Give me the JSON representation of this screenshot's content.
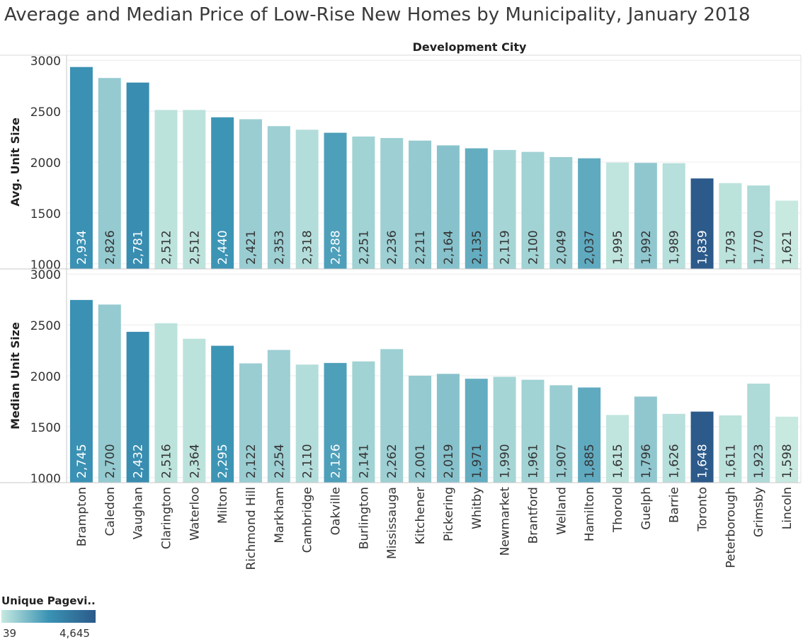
{
  "chart_data": {
    "type": "bar",
    "title": "Average and Median Price of Low-Rise New Homes by Municipality, January 2018",
    "column_header": "Development City",
    "categories": [
      "Brampton",
      "Caledon",
      "Vaughan",
      "Clarington",
      "Waterloo",
      "Milton",
      "Richmond Hill",
      "Markham",
      "Cambridge",
      "Oakville",
      "Burlington",
      "Mississauga",
      "Kitchener",
      "Pickering",
      "Whitby",
      "Newmarket",
      "Brantford",
      "Welland",
      "Hamilton",
      "Thorold",
      "Guelph",
      "Barrie",
      "Toronto",
      "Peterborough",
      "Grimsby",
      "Lincoln"
    ],
    "color_values": [
      3300,
      1200,
      3400,
      300,
      300,
      3200,
      1100,
      1000,
      500,
      2800,
      900,
      1000,
      1200,
      1500,
      2300,
      800,
      900,
      1100,
      2400,
      200,
      1300,
      400,
      4645,
      300,
      600,
      39
    ],
    "series": [
      {
        "name": "Avg. Unit Size",
        "ylabel": "Avg. Unit Size",
        "values": [
          2934,
          2826,
          2781,
          2512,
          2512,
          2440,
          2421,
          2353,
          2318,
          2288,
          2251,
          2236,
          2211,
          2164,
          2135,
          2119,
          2100,
          2049,
          2037,
          1995,
          1992,
          1989,
          1839,
          1793,
          1770,
          1621
        ],
        "labels": [
          "2,934",
          "2,826",
          "2,781",
          "2,512",
          "2,512",
          "2,440",
          "2,421",
          "2,353",
          "2,318",
          "2,288",
          "2,251",
          "2,236",
          "2,211",
          "2,164",
          "2,135",
          "2,119",
          "2,100",
          "2,049",
          "2,037",
          "1,995",
          "1,992",
          "1,989",
          "1,839",
          "1,793",
          "1,770",
          "1,621"
        ],
        "ylim": [
          950,
          3050
        ],
        "ticks": [
          3000,
          2500,
          2000,
          1500,
          1000
        ]
      },
      {
        "name": "Median Unit Size",
        "ylabel": "Median Unit Size",
        "values": [
          2745,
          2700,
          2432,
          2516,
          2364,
          2295,
          2122,
          2254,
          2110,
          2126,
          2141,
          2262,
          2001,
          2019,
          1971,
          1990,
          1961,
          1907,
          1885,
          1615,
          1796,
          1626,
          1648,
          1611,
          1923,
          1598
        ],
        "labels": [
          "2,745",
          "2,700",
          "2,432",
          "2,516",
          "2,364",
          "2,295",
          "2,122",
          "2,254",
          "2,110",
          "2,126",
          "2,141",
          "2,262",
          "2,001",
          "2,019",
          "1,971",
          "1,990",
          "1,961",
          "1,907",
          "1,885",
          "1,615",
          "1,796",
          "1,626",
          "1,648",
          "1,611",
          "1,923",
          "1,598"
        ],
        "ylim": [
          950,
          3050
        ],
        "ticks": [
          3000,
          2500,
          2000,
          1500,
          1000
        ]
      }
    ],
    "grid": true,
    "legend": {
      "title": "Unique Pagevi..",
      "min_label": "39",
      "max_label": "4,645",
      "min": 39,
      "max": 4645,
      "placement": "bottom-left"
    },
    "colors": {
      "low": "#c7e9e0",
      "mid": "#3a93b4",
      "high": "#2c5a8a"
    }
  }
}
